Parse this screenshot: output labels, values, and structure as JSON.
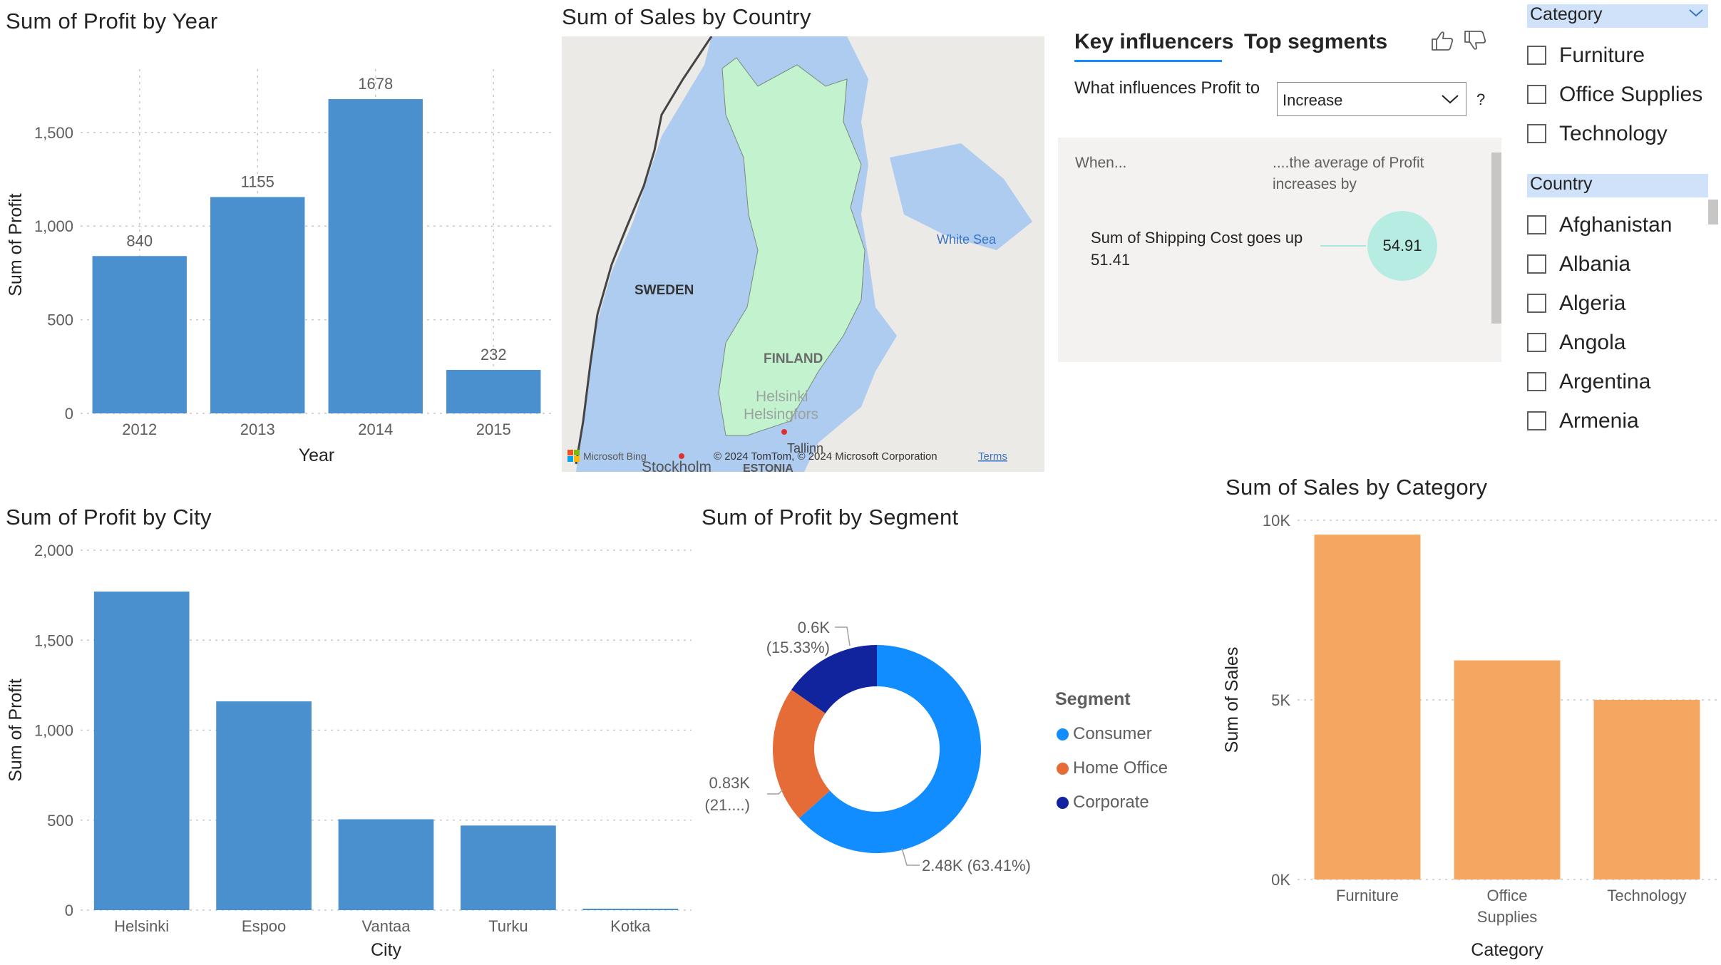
{
  "visuals": {
    "profit_by_year": {
      "title": "Sum of Profit by Year",
      "xlabel": "Year",
      "ylabel": "Sum of Profit",
      "y_ticks": [
        "0",
        "500",
        "1,000",
        "1,500"
      ],
      "bar_color": "#4a8fce"
    },
    "sales_by_country": {
      "title": "Sum of Sales by Country",
      "labels": {
        "sweden": "SWEDEN",
        "finland": "FINLAND",
        "white_sea": "White Sea",
        "helsinki": "Helsinki",
        "helsingfors": "Helsingfors",
        "stockholm": "Stockholm",
        "estonia": "ESTONIA",
        "tallinn": "Tallinn"
      },
      "attribution": {
        "bing": "Microsoft Bing",
        "copyright": "© 2024 TomTom, © 2024 Microsoft Corporation",
        "terms": "Terms"
      }
    },
    "key_influencers": {
      "tab_active": "Key influencers",
      "tab_other": "Top segments",
      "question": "What influences Profit to",
      "dropdown_value": "Increase",
      "help": "?",
      "col_when": "When...",
      "col_effect": "....the average of Profit increases by",
      "influencer_text": "Sum of Shipping Cost goes up 51.41",
      "influencer_value": "54.91",
      "icons": [
        "thumbs-up-icon",
        "thumbs-down-icon",
        "chevron-down-icon"
      ]
    },
    "category_slicer": {
      "header": "Category",
      "items": [
        "Furniture",
        "Office Supplies",
        "Technology"
      ]
    },
    "country_slicer": {
      "header": "Country",
      "items": [
        "Afghanistan",
        "Albania",
        "Algeria",
        "Angola",
        "Argentina",
        "Armenia"
      ]
    },
    "profit_by_city": {
      "title": "Sum of Profit by City",
      "xlabel": "City",
      "ylabel": "Sum of Profit",
      "y_ticks": [
        "0",
        "500",
        "1,000",
        "1,500",
        "2,000"
      ],
      "bar_color": "#4a8fce"
    },
    "profit_by_segment": {
      "title": "Sum of Profit by Segment",
      "legend_title": "Segment",
      "slice_labels": [
        {
          "value": "2.48K",
          "pct": "(63.41%)"
        },
        {
          "value": "0.83K",
          "pct": "(21....)"
        },
        {
          "value": "0.6K",
          "pct": "(15.33%)"
        }
      ]
    },
    "sales_by_category": {
      "title": "Sum of Sales by Category",
      "xlabel": "Category",
      "ylabel": "Sum of Sales",
      "y_ticks": [
        "0K",
        "5K",
        "10K"
      ],
      "bar_color": "#f5a762"
    }
  },
  "chart_data": [
    {
      "type": "bar",
      "title": "Sum of Profit by Year",
      "xlabel": "Year",
      "ylabel": "Sum of Profit",
      "categories": [
        "2012",
        "2013",
        "2014",
        "2015"
      ],
      "values": [
        840,
        1155,
        1678,
        232
      ],
      "data_labels": [
        "840",
        "1155",
        "1678",
        "232"
      ],
      "ylim": [
        0,
        1800
      ],
      "grid": true
    },
    {
      "type": "bar",
      "title": "Sum of Profit by City",
      "xlabel": "City",
      "ylabel": "Sum of Profit",
      "categories": [
        "Helsinki",
        "Espoo",
        "Vantaa",
        "Turku",
        "Kotka"
      ],
      "values": [
        1770,
        1160,
        505,
        470,
        8
      ],
      "ylim": [
        0,
        2000
      ],
      "grid": true
    },
    {
      "type": "pie",
      "title": "Sum of Profit by Segment",
      "categories": [
        "Consumer",
        "Home Office",
        "Corporate"
      ],
      "values": [
        2480,
        830,
        600
      ],
      "percentages": [
        63.41,
        21.26,
        15.33
      ],
      "colors": [
        "#118dff",
        "#e66c37",
        "#12239e"
      ],
      "legend": "right"
    },
    {
      "type": "bar",
      "title": "Sum of Sales by Category",
      "xlabel": "Category",
      "ylabel": "Sum of Sales",
      "categories": [
        "Furniture",
        "Office Supplies",
        "Technology"
      ],
      "category_lines": [
        [
          "Furniture"
        ],
        [
          "Office",
          "Supplies"
        ],
        [
          "Technology"
        ]
      ],
      "values": [
        9600,
        6100,
        5000
      ],
      "ylim": [
        0,
        10000
      ],
      "grid": true
    }
  ]
}
